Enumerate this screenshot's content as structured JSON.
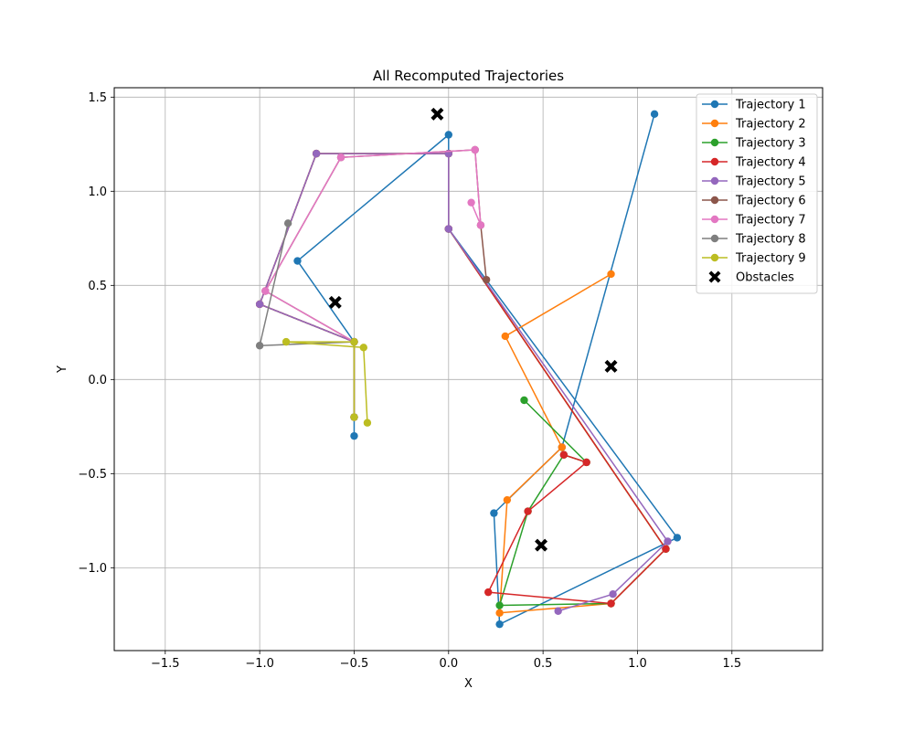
{
  "chart_data": {
    "type": "line",
    "title": "All Recomputed Trajectories",
    "xlabel": "X",
    "ylabel": "Y",
    "xlim": [
      -1.77,
      1.98
    ],
    "ylim": [
      -1.44,
      1.55
    ],
    "xticks": [
      -1.5,
      -1.0,
      -0.5,
      0.0,
      0.5,
      1.0,
      1.5
    ],
    "xtick_labels": [
      "−1.5",
      "−1.0",
      "−0.5",
      "0.0",
      "0.5",
      "1.0",
      "1.5"
    ],
    "yticks": [
      -1.0,
      -0.5,
      0.0,
      0.5,
      1.0,
      1.5
    ],
    "ytick_labels": [
      "−1.0",
      "−0.5",
      "0.0",
      "0.5",
      "1.0",
      "1.5"
    ],
    "grid": true,
    "legend_position": "top-right",
    "series": [
      {
        "name": "Trajectory 1",
        "color": "#1f77b4",
        "points": [
          [
            -0.5,
            -0.3
          ],
          [
            -0.5,
            0.2
          ],
          [
            -0.8,
            0.63
          ],
          [
            0.0,
            1.3
          ],
          [
            0.0,
            0.8
          ],
          [
            1.21,
            -0.84
          ],
          [
            0.27,
            -1.3
          ],
          [
            0.24,
            -0.71
          ],
          [
            0.6,
            -0.36
          ],
          [
            1.09,
            1.41
          ]
        ]
      },
      {
        "name": "Trajectory 2",
        "color": "#ff7f0e",
        "points": [
          [
            0.86,
            0.56
          ],
          [
            0.3,
            0.23
          ],
          [
            0.6,
            -0.36
          ],
          [
            0.31,
            -0.64
          ],
          [
            0.27,
            -1.24
          ],
          [
            0.86,
            -1.19
          ],
          [
            1.15,
            -0.9
          ],
          [
            0.0,
            0.8
          ],
          [
            0.0,
            1.2
          ],
          [
            -0.7,
            1.2
          ],
          [
            -1.0,
            0.4
          ],
          [
            -0.5,
            0.2
          ],
          [
            -0.5,
            -0.2
          ]
        ]
      },
      {
        "name": "Trajectory 3",
        "color": "#2ca02c",
        "points": [
          [
            0.4,
            -0.11
          ],
          [
            0.73,
            -0.44
          ],
          [
            0.61,
            -0.4
          ],
          [
            0.42,
            -0.7
          ],
          [
            0.27,
            -1.2
          ],
          [
            0.86,
            -1.19
          ],
          [
            1.15,
            -0.9
          ],
          [
            0.0,
            0.8
          ],
          [
            0.0,
            1.2
          ],
          [
            -0.7,
            1.2
          ],
          [
            -1.0,
            0.4
          ],
          [
            -0.5,
            0.2
          ],
          [
            -0.5,
            -0.2
          ]
        ]
      },
      {
        "name": "Trajectory 4",
        "color": "#d62728",
        "points": [
          [
            0.61,
            -0.4
          ],
          [
            0.73,
            -0.44
          ],
          [
            0.42,
            -0.7
          ],
          [
            0.21,
            -1.13
          ],
          [
            0.86,
            -1.19
          ],
          [
            1.15,
            -0.9
          ],
          [
            0.0,
            0.8
          ],
          [
            0.0,
            1.2
          ],
          [
            -0.7,
            1.2
          ],
          [
            -1.0,
            0.4
          ],
          [
            -0.5,
            0.2
          ],
          [
            -0.5,
            -0.2
          ]
        ]
      },
      {
        "name": "Trajectory 5",
        "color": "#9467bd",
        "points": [
          [
            0.58,
            -1.23
          ],
          [
            0.87,
            -1.14
          ],
          [
            1.16,
            -0.86
          ],
          [
            0.0,
            0.8
          ],
          [
            0.0,
            1.2
          ],
          [
            -0.7,
            1.2
          ],
          [
            -1.0,
            0.4
          ],
          [
            -0.5,
            0.2
          ],
          [
            -0.5,
            -0.2
          ]
        ]
      },
      {
        "name": "Trajectory 6",
        "color": "#8c564b",
        "points": [
          [
            0.2,
            0.53
          ],
          [
            0.17,
            0.82
          ],
          [
            0.14,
            1.22
          ],
          [
            -0.57,
            1.18
          ],
          [
            -0.97,
            0.47
          ],
          [
            -0.5,
            0.2
          ],
          [
            -0.5,
            -0.2
          ]
        ]
      },
      {
        "name": "Trajectory 7",
        "color": "#e377c2",
        "points": [
          [
            0.12,
            0.94
          ],
          [
            0.17,
            0.82
          ],
          [
            0.14,
            1.22
          ],
          [
            -0.57,
            1.18
          ],
          [
            -0.97,
            0.47
          ],
          [
            -0.5,
            0.2
          ],
          [
            -0.5,
            -0.2
          ]
        ]
      },
      {
        "name": "Trajectory 8",
        "color": "#7f7f7f",
        "points": [
          [
            -0.85,
            0.83
          ],
          [
            -1.0,
            0.18
          ],
          [
            -0.5,
            0.2
          ],
          [
            -0.5,
            -0.2
          ]
        ]
      },
      {
        "name": "Trajectory 9",
        "color": "#bcbd22",
        "points": [
          [
            -0.43,
            -0.23
          ],
          [
            -0.45,
            0.17
          ],
          [
            -0.86,
            0.2
          ],
          [
            -0.5,
            0.2
          ],
          [
            -0.5,
            -0.2
          ]
        ]
      }
    ],
    "obstacles": {
      "name": "Obstacles",
      "color": "#000000",
      "points": [
        [
          -0.06,
          1.41
        ],
        [
          -0.6,
          0.41
        ],
        [
          0.86,
          0.07
        ],
        [
          0.49,
          -0.88
        ]
      ]
    }
  }
}
